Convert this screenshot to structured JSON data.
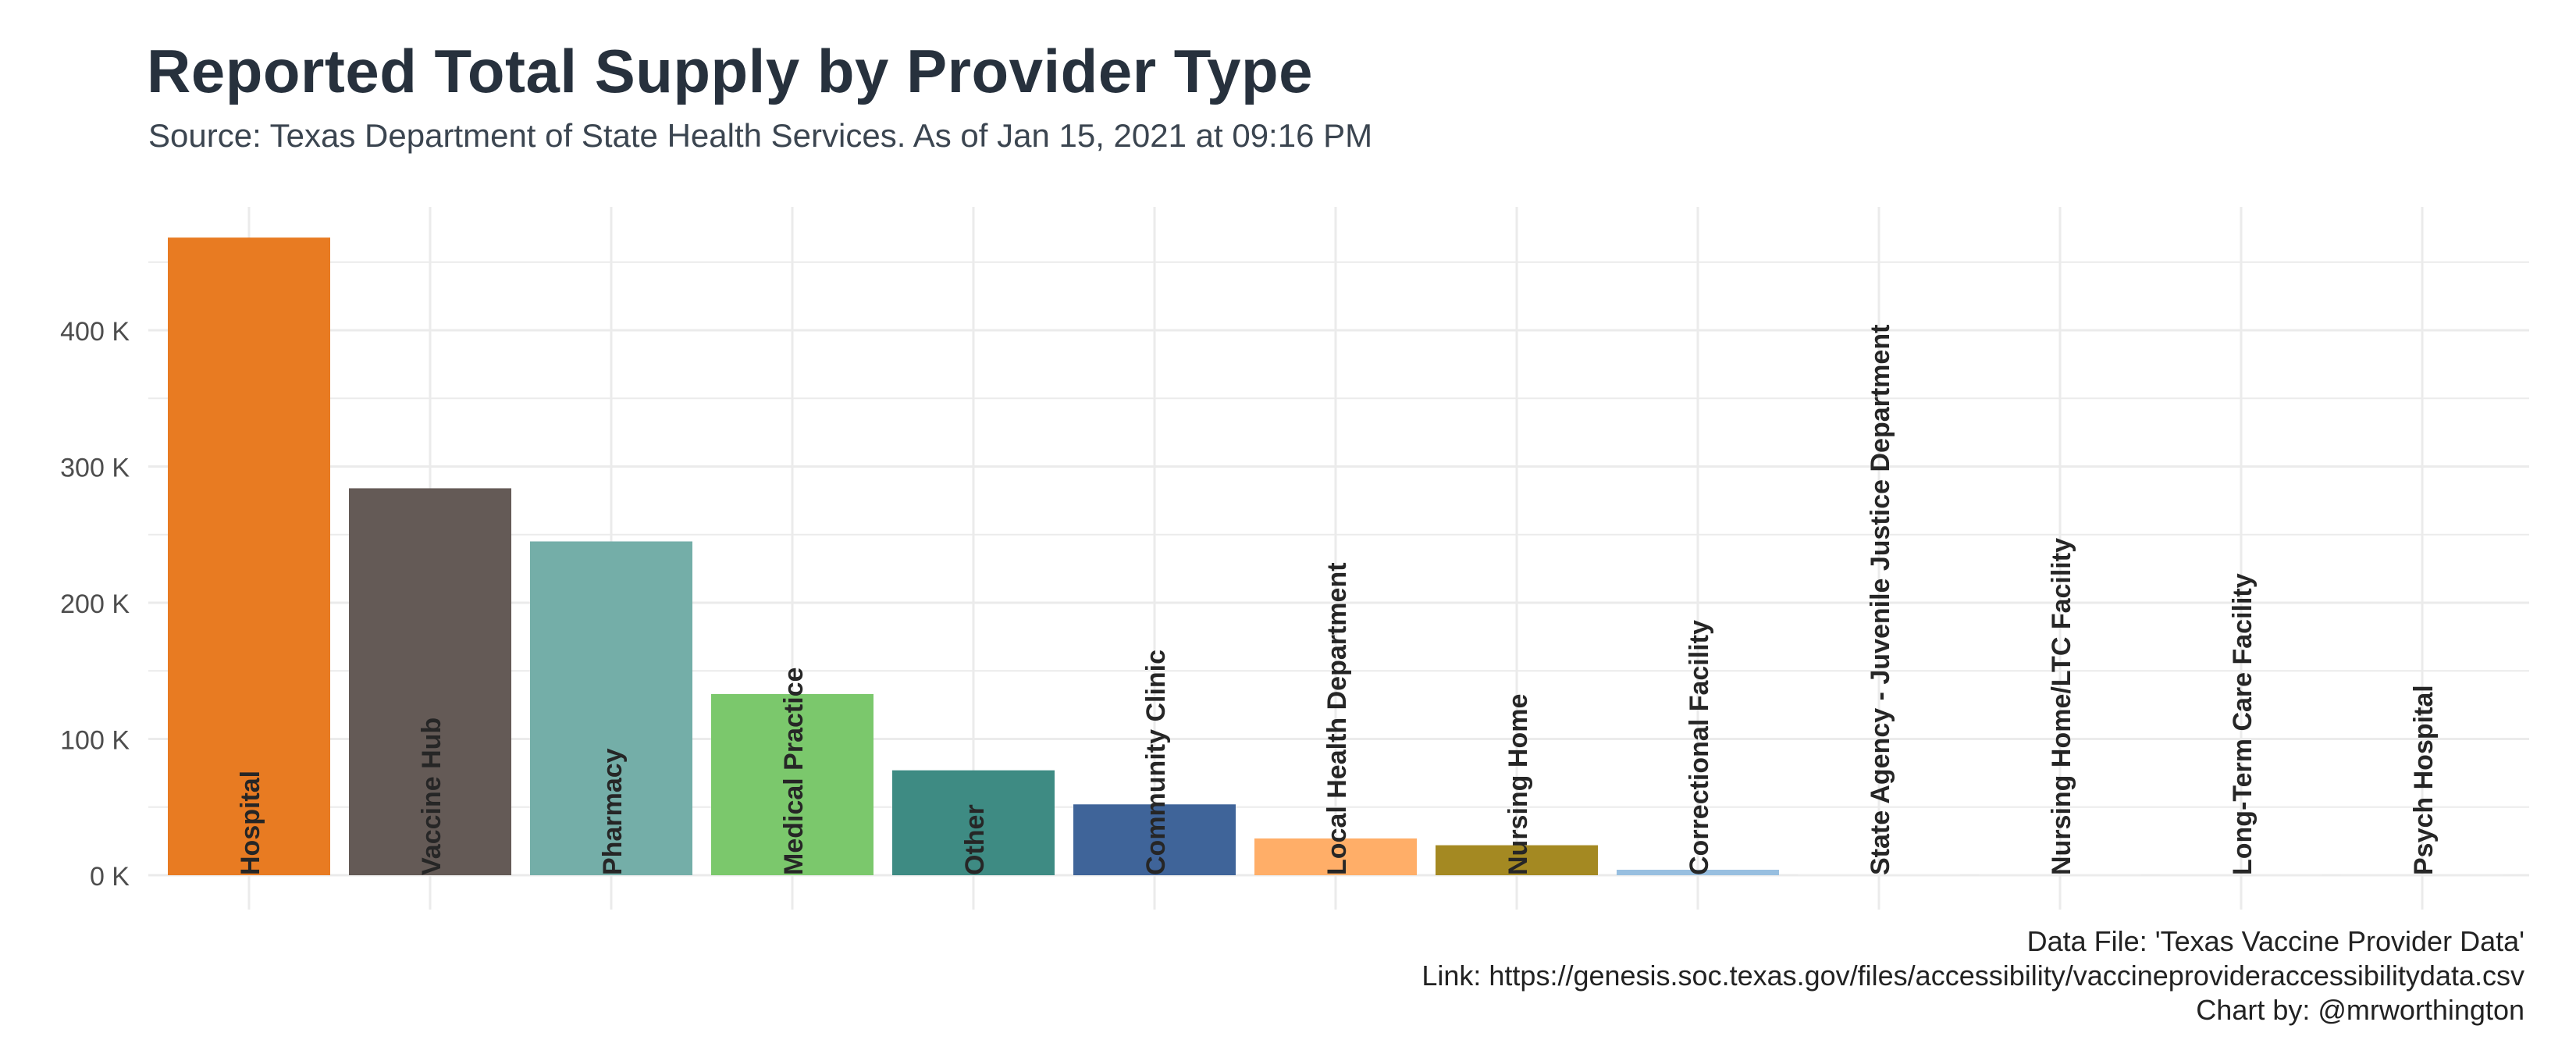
{
  "title": "Reported Total Supply by Provider Type",
  "subtitle": "Source: Texas Department of State Health Services. As of Jan 15, 2021 at 09:16 PM",
  "caption": {
    "line1": "Data File: 'Texas Vaccine Provider Data'",
    "line2": "Link: https://genesis.soc.texas.gov/files/accessibility/vaccineprovideraccessibilitydata.csv",
    "line3": "Chart by: @mrworthington"
  },
  "chart_data": {
    "type": "bar",
    "title": "Reported Total Supply by Provider Type",
    "xlabel": "",
    "ylabel": "",
    "ylim": [
      0,
      470000
    ],
    "y_ticks": [
      0,
      100000,
      200000,
      300000,
      400000
    ],
    "y_tick_labels": [
      "0 K",
      "100 K",
      "200 K",
      "300 K",
      "400 K"
    ],
    "grid": true,
    "legend": "none",
    "categories": [
      "Hospital",
      "Vaccine Hub",
      "Pharmacy",
      "Medical Practice",
      "Other",
      "Community Clinic",
      "Local Health Department",
      "Nursing Home",
      "Correctional Facility",
      "State Agency - Juvenile Justice Department",
      "Nursing Home/LTC Facility",
      "Long-Term Care Facility",
      "Psych Hospital"
    ],
    "values": [
      468000,
      284000,
      245000,
      133000,
      77000,
      52000,
      27000,
      22000,
      4000,
      800,
      500,
      400,
      200
    ],
    "colors": [
      "#e87b22",
      "#645a56",
      "#74aea8",
      "#7bc86c",
      "#3e8b83",
      "#3f6499",
      "#ffae68",
      "#a48922",
      "#98bfe0",
      "#eeeeee",
      "#eeeeee",
      "#eeeeee",
      "#eeeeee"
    ]
  }
}
